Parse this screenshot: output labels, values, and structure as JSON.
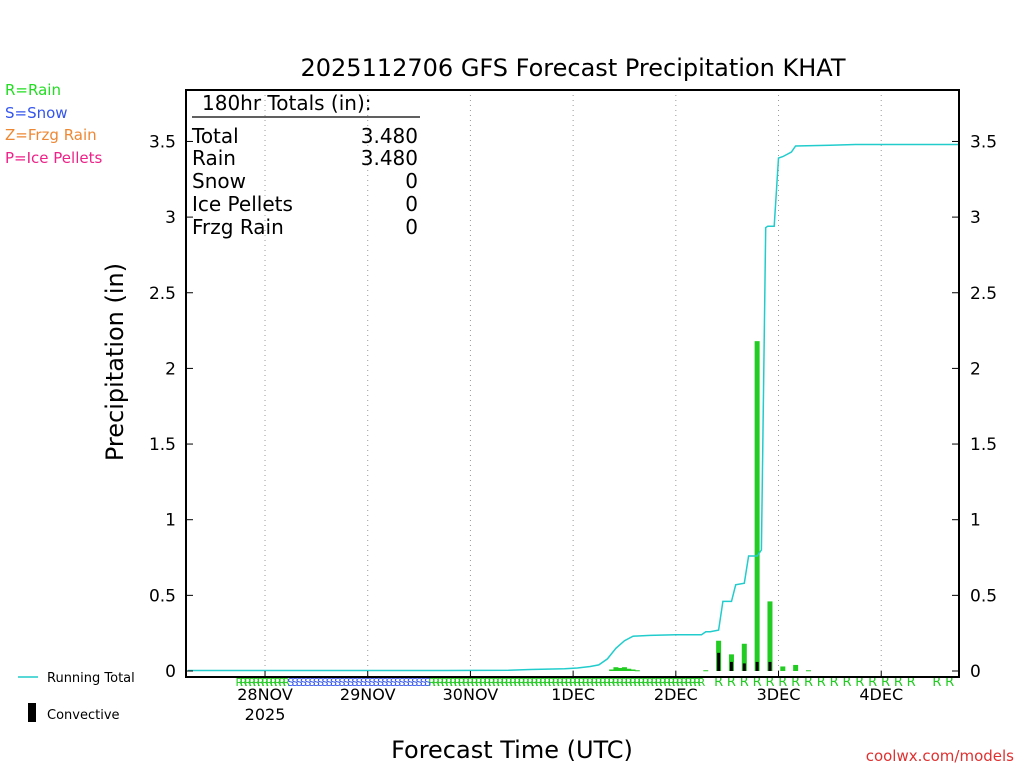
{
  "chart_data": {
    "type": "bar",
    "title": "2025112706 GFS Forecast Precipitation KHAT",
    "xlabel": "Forecast Time (UTC)",
    "ylabel": "Precipitation (in)",
    "ylim": [
      0,
      3.8
    ],
    "yticks": [
      0,
      0.5,
      1,
      1.5,
      2,
      2.5,
      3,
      3.5
    ],
    "yticklabels": [
      "0",
      "0.5",
      "1",
      "1.5",
      "2",
      "2.5",
      "3",
      "3.5"
    ],
    "x_unit": "hours after 2025-11-27 06Z",
    "xlim": [
      0,
      180
    ],
    "xticks": [
      {
        "hour": 18,
        "label": "28NOV",
        "sublabel": "2025"
      },
      {
        "hour": 42,
        "label": "29NOV"
      },
      {
        "hour": 66,
        "label": "30NOV"
      },
      {
        "hour": 90,
        "label": "1DEC"
      },
      {
        "hour": 114,
        "label": "2DEC"
      },
      {
        "hour": 138,
        "label": "3DEC"
      },
      {
        "hour": 162,
        "label": "4DEC"
      }
    ],
    "totals_box": {
      "header": "180hr Totals (in):",
      "rows": [
        {
          "label": "Total",
          "value": "3.480"
        },
        {
          "label": "Rain",
          "value": "3.480"
        },
        {
          "label": "Snow",
          "value": "0"
        },
        {
          "label": "Ice Pellets",
          "value": "0"
        },
        {
          "label": "Frzg Rain",
          "value": "0"
        }
      ]
    },
    "ptype_legend": [
      {
        "text": "R=Rain",
        "color": "#22dd22"
      },
      {
        "text": "S=Snow",
        "color": "#3355ee"
      },
      {
        "text": "Z=Frzg Rain",
        "color": "#ee8833"
      },
      {
        "text": "P=Ice Pellets",
        "color": "#ee2288"
      }
    ],
    "series_legend": {
      "running_total": "Running Total",
      "convective": "Convective"
    },
    "running_total": {
      "name": "Running Total",
      "color": "#22cccc",
      "x": [
        0,
        60,
        75,
        80,
        88,
        91,
        94,
        96,
        98,
        100,
        102,
        104,
        108,
        114,
        120,
        121,
        122,
        124,
        125,
        127,
        128,
        130,
        131,
        133,
        134,
        135,
        135.5,
        136,
        137,
        138,
        139,
        141,
        142,
        150,
        156,
        165,
        180
      ],
      "y": [
        0.003,
        0.003,
        0.005,
        0.01,
        0.015,
        0.02,
        0.03,
        0.04,
        0.08,
        0.15,
        0.2,
        0.23,
        0.235,
        0.24,
        0.24,
        0.26,
        0.26,
        0.27,
        0.46,
        0.46,
        0.57,
        0.58,
        0.76,
        0.76,
        0.8,
        2.93,
        2.94,
        2.94,
        2.94,
        3.39,
        3.4,
        3.43,
        3.47,
        3.475,
        3.48,
        3.48,
        3.48
      ]
    },
    "bars": {
      "name": "Precipitation",
      "color": "#22cc22",
      "x": [
        99,
        100,
        101,
        102,
        103,
        104,
        105,
        121,
        124,
        127,
        130,
        133,
        136,
        139,
        142,
        145
      ],
      "values": [
        0.01,
        0.025,
        0.02,
        0.025,
        0.015,
        0.01,
        0.005,
        0.005,
        0.2,
        0.11,
        0.18,
        2.18,
        0.46,
        0.03,
        0.04,
        0.005
      ]
    },
    "convective": {
      "name": "Convective",
      "color": "#000000",
      "x": [
        124,
        127,
        130,
        133,
        136
      ],
      "values": [
        0.12,
        0.06,
        0.05,
        0.06,
        0.06
      ]
    },
    "ptype_rows": {
      "rain_hours": [
        12,
        13,
        14,
        15,
        16,
        17,
        18,
        19,
        20,
        21,
        22,
        23,
        57,
        58,
        59,
        60,
        61,
        62,
        63,
        64,
        65,
        66,
        67,
        68,
        69,
        70,
        71,
        72,
        73,
        74,
        75,
        76,
        77,
        78,
        79,
        80,
        81,
        82,
        83,
        84,
        85,
        86,
        87,
        88,
        89,
        90,
        91,
        92,
        93,
        94,
        95,
        96,
        97,
        98,
        99,
        100,
        101,
        102,
        103,
        104,
        105,
        106,
        107,
        108,
        109,
        110,
        111,
        112,
        113,
        114,
        115,
        116,
        117,
        118,
        119,
        120
      ],
      "rain_letters_hours": [
        124,
        127,
        130,
        133,
        136,
        139,
        142,
        145,
        148,
        151,
        154,
        157,
        160,
        163,
        166,
        169,
        175,
        178
      ],
      "snow_hours": [
        24,
        25,
        26,
        27,
        28,
        29,
        30,
        31,
        32,
        33,
        34,
        35,
        36,
        37,
        38,
        39,
        40,
        41,
        42,
        43,
        44,
        45,
        46,
        47,
        48,
        49,
        50,
        51,
        52,
        53,
        54,
        55,
        56
      ]
    },
    "grid": "vertical dotted at day boundaries",
    "credit": "coolwx.com/models"
  }
}
